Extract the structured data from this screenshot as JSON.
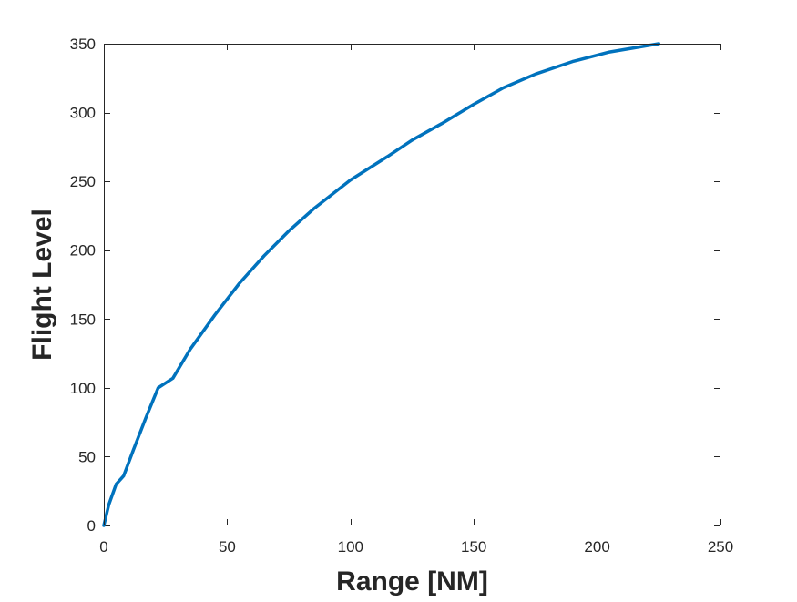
{
  "chart_data": {
    "type": "line",
    "title": "",
    "xlabel": "Range [NM]",
    "ylabel": "Flight Level",
    "xlim": [
      0,
      250
    ],
    "ylim": [
      0,
      350
    ],
    "xticks": [
      0,
      50,
      100,
      150,
      200,
      250
    ],
    "yticks": [
      0,
      50,
      100,
      150,
      200,
      250,
      300,
      350
    ],
    "xtick_labels": [
      "0",
      "50",
      "100",
      "150",
      "200",
      "250"
    ],
    "ytick_labels": [
      "0",
      "50",
      "100",
      "150",
      "200",
      "250",
      "300",
      "350"
    ],
    "grid": false,
    "box": true,
    "series": [
      {
        "color": "#0072BD",
        "x": [
          0,
          2,
          5,
          8,
          12,
          17,
          22,
          28,
          35,
          45,
          55,
          65,
          75,
          85,
          100,
          115,
          125,
          137,
          150,
          162,
          175,
          190,
          205,
          225
        ],
        "y": [
          0,
          15,
          30,
          36,
          55,
          78,
          100,
          107,
          128,
          153,
          176,
          196,
          214,
          230,
          251,
          268,
          280,
          292,
          306,
          318,
          328,
          337,
          344,
          350
        ]
      }
    ],
    "colors": {
      "line": "#0072BD",
      "axis": "#262626",
      "background": "#ffffff"
    }
  }
}
